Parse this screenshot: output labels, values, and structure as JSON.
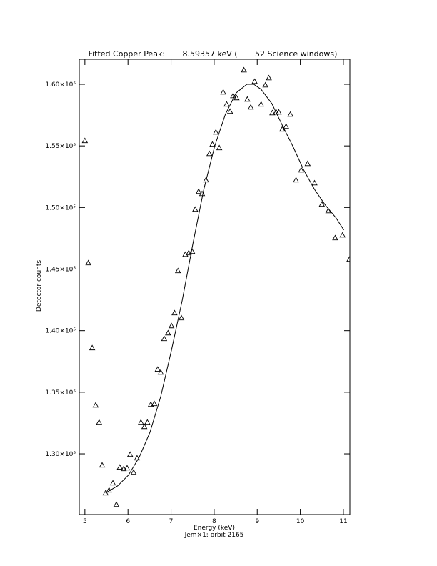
{
  "chart_data": {
    "type": "scatter",
    "title": "Fitted Copper Peak:       8.59357 keV (       52 Science windows)",
    "xlabel": "Energy (keV)",
    "subtitle": "Jem×1: orbit 2165",
    "ylabel": "Detector counts",
    "xlim": [
      4.87,
      11.15
    ],
    "ylim": [
      125070,
      162030
    ],
    "xticks": [
      5,
      6,
      7,
      8,
      9,
      10,
      11
    ],
    "yticks": [
      {
        "value": 130000,
        "label": "1.30×10⁵"
      },
      {
        "value": 135000,
        "label": "1.35×10⁵"
      },
      {
        "value": 140000,
        "label": "1.40×10⁵"
      },
      {
        "value": 145000,
        "label": "1.45×10⁵"
      },
      {
        "value": 150000,
        "label": "1.50×10⁵"
      },
      {
        "value": 155000,
        "label": "1.55×10⁵"
      },
      {
        "value": 160000,
        "label": "1.60×10⁵"
      }
    ],
    "color": "#000000",
    "series": [
      {
        "marker": "triangle",
        "x": [
          5.0,
          5.08,
          5.17,
          5.25,
          5.33,
          5.4,
          5.48,
          5.56,
          5.65,
          5.73,
          5.81,
          5.9,
          5.98,
          6.05,
          6.13,
          6.21,
          6.3,
          6.38,
          6.45,
          6.53,
          6.61,
          6.69,
          6.76,
          6.84,
          6.93,
          7.01,
          7.08,
          7.16,
          7.24,
          7.33,
          7.41,
          7.49,
          7.56,
          7.64,
          7.72,
          7.81,
          7.89,
          7.96,
          8.04,
          8.12,
          8.21,
          8.29,
          8.37,
          8.44,
          8.52,
          8.69,
          8.77,
          8.85,
          8.94,
          9.09,
          9.19,
          9.27,
          9.35,
          9.44,
          9.5,
          9.58,
          9.67,
          9.77,
          9.9,
          10.02,
          10.17,
          10.33,
          10.5,
          10.65,
          10.81,
          10.98,
          11.14
        ],
        "values": [
          155420,
          145500,
          138600,
          133950,
          132560,
          129080,
          126820,
          127050,
          127630,
          125890,
          128910,
          128790,
          128850,
          129950,
          128500,
          129660,
          132560,
          132210,
          132560,
          134010,
          134070,
          136860,
          136620,
          139350,
          139810,
          140390,
          141440,
          144860,
          141030,
          146190,
          146310,
          146430,
          149850,
          151300,
          151120,
          152230,
          154370,
          155130,
          156110,
          154840,
          159360,
          158380,
          157800,
          159070,
          158900,
          161160,
          158780,
          158140,
          160230,
          158380,
          159940,
          160520,
          157680,
          157740,
          157740,
          156350,
          156580,
          157560,
          152230,
          153040,
          153560,
          151990,
          150260,
          149730,
          147530,
          147760,
          145790
        ]
      },
      {
        "marker": "line",
        "x": [
          5.48,
          5.76,
          6.01,
          6.26,
          6.51,
          6.76,
          7.01,
          7.26,
          7.51,
          7.76,
          8.01,
          8.26,
          8.51,
          8.76,
          8.92,
          9.09,
          9.34,
          9.58,
          9.83,
          10.08,
          10.33,
          10.58,
          10.83,
          11.01
        ],
        "values": [
          126820,
          127400,
          128270,
          129720,
          131750,
          134650,
          138420,
          142480,
          147120,
          151470,
          154950,
          157560,
          159300,
          160000,
          160000,
          159590,
          158430,
          156690,
          154950,
          153040,
          151470,
          150200,
          149150,
          148170
        ]
      }
    ]
  }
}
